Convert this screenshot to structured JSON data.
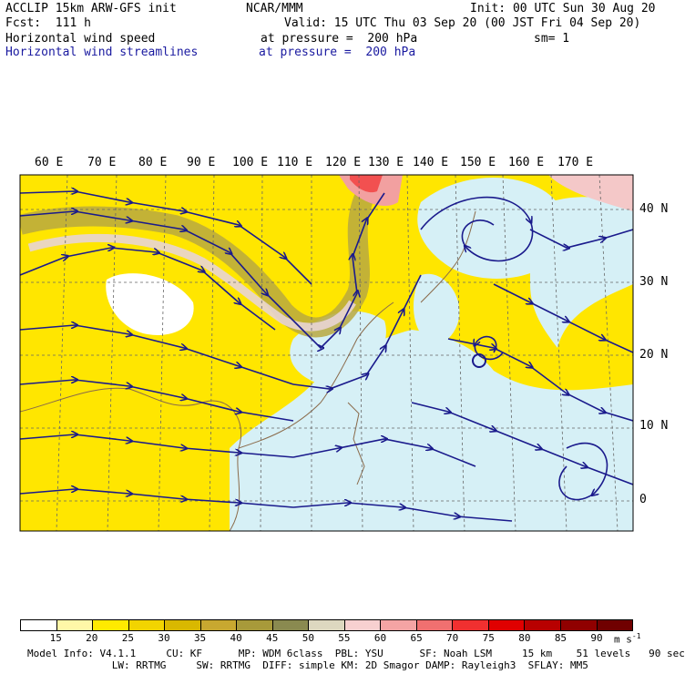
{
  "header": {
    "model": "ACCLIP 15km ARW-GFS init",
    "org": "NCAR/MMM",
    "init": "Init: 00 UTC Sun 30 Aug 20",
    "fcst": "Fcst:  111 h",
    "valid": "Valid: 15 UTC Thu 03 Sep 20 (00 JST Fri 04 Sep 20)",
    "field1": "Horizontal wind speed",
    "field1_level": "at pressure =  200 hPa",
    "sm": "sm= 1",
    "field2": "Horizontal wind streamlines",
    "field2_level": "at pressure =  200 hPa"
  },
  "lon_labels": [
    "60 E",
    "70 E",
    "80 E",
    "90 E",
    "100 E",
    "110 E",
    "120 E",
    "130 E",
    "140 E",
    "150 E",
    "160 E",
    "170 E"
  ],
  "lat_labels": [
    "40 N",
    "30 N",
    "20 N",
    "10 N",
    "0"
  ],
  "colorbar": {
    "labels": [
      "15",
      "20",
      "25",
      "30",
      "35",
      "40",
      "45",
      "50",
      "55",
      "60",
      "65",
      "70",
      "75",
      "80",
      "85",
      "90"
    ],
    "unit": "m s",
    "unit_exp": "-1",
    "colors": [
      "#ffffff",
      "#fff7a8",
      "#ffea00",
      "#f2d400",
      "#d9b800",
      "#c8a830",
      "#a89a3a",
      "#8a8a50",
      "#ddd8c0",
      "#f7d0d0",
      "#f4a4a4",
      "#f07070",
      "#f03030",
      "#e00000",
      "#b80000",
      "#900000",
      "#700000"
    ]
  },
  "footer": {
    "line1": "Model Info: V4.1.1     CU: KF      MP: WDM 6class  PBL: YSU      SF: Noah LSM     15 km    51 levels   90 sec",
    "line2": "              LW: RRTMG     SW: RRTMG  DIFF: simple KM: 2D Smagor DAMP: Rayleigh3  SFLAY: MM5"
  }
}
